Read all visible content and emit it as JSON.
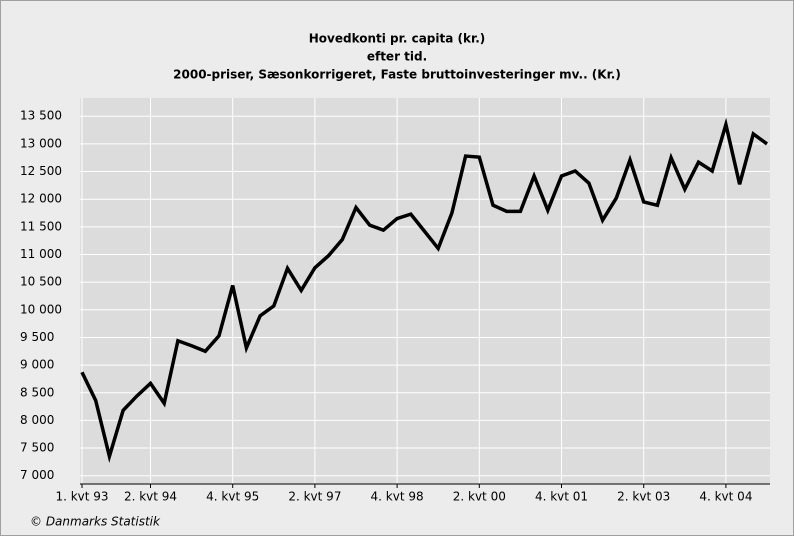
{
  "chart_data": {
    "type": "line",
    "title_lines": [
      "Hovedkonti  pr. capita (kr.)",
      "efter tid.",
      "2000-priser, Sæsonkorrigeret, Faste bruttoinvesteringer mv.. (Kr.)"
    ],
    "source": "© Danmarks Statistik",
    "categories": [
      "1. kvt 93",
      null,
      null,
      null,
      null,
      "2. kvt 94",
      null,
      null,
      null,
      null,
      null,
      "4. kvt 95",
      null,
      null,
      null,
      null,
      null,
      "2. kvt 97",
      null,
      null,
      null,
      null,
      null,
      "4. kvt 98",
      null,
      null,
      null,
      null,
      null,
      "2. kvt 00",
      null,
      null,
      null,
      null,
      null,
      "4. kvt 01",
      null,
      null,
      null,
      null,
      null,
      "2. kvt 03",
      null,
      null,
      null,
      null,
      null,
      "4. kvt 04",
      null,
      null,
      null
    ],
    "series": [
      {
        "name": "Hovedkonti pr. capita",
        "color": "#000000",
        "values": [
          8870,
          8360,
          7350,
          8180,
          8440,
          8670,
          8310,
          9440,
          9350,
          9250,
          9530,
          10440,
          9310,
          9890,
          10070,
          10750,
          10350,
          10760,
          10980,
          11270,
          11850,
          11530,
          11440,
          11650,
          11730,
          11420,
          11110,
          11750,
          12780,
          12760,
          11890,
          11780,
          11780,
          12420,
          11800,
          12420,
          12510,
          12290,
          11620,
          12020,
          12710,
          11950,
          11890,
          12750,
          12180,
          12670,
          12510,
          13350,
          12270,
          13180,
          13000
        ]
      }
    ],
    "ylim": [
      6850,
      13830
    ],
    "yticks": [
      {
        "value": 7000,
        "label": "7 000"
      },
      {
        "value": 7500,
        "label": "7 500"
      },
      {
        "value": 8000,
        "label": "8 000"
      },
      {
        "value": 8500,
        "label": "8 500"
      },
      {
        "value": 9000,
        "label": "9 000"
      },
      {
        "value": 9500,
        "label": "9 500"
      },
      {
        "value": 10000,
        "label": "10 000"
      },
      {
        "value": 10500,
        "label": "10 500"
      },
      {
        "value": 11000,
        "label": "11 000"
      },
      {
        "value": 11500,
        "label": "11 500"
      },
      {
        "value": 12000,
        "label": "12 000"
      },
      {
        "value": 12500,
        "label": "12 500"
      },
      {
        "value": 13000,
        "label": "13 000"
      },
      {
        "value": 13500,
        "label": "13 500"
      }
    ],
    "grid": true
  }
}
